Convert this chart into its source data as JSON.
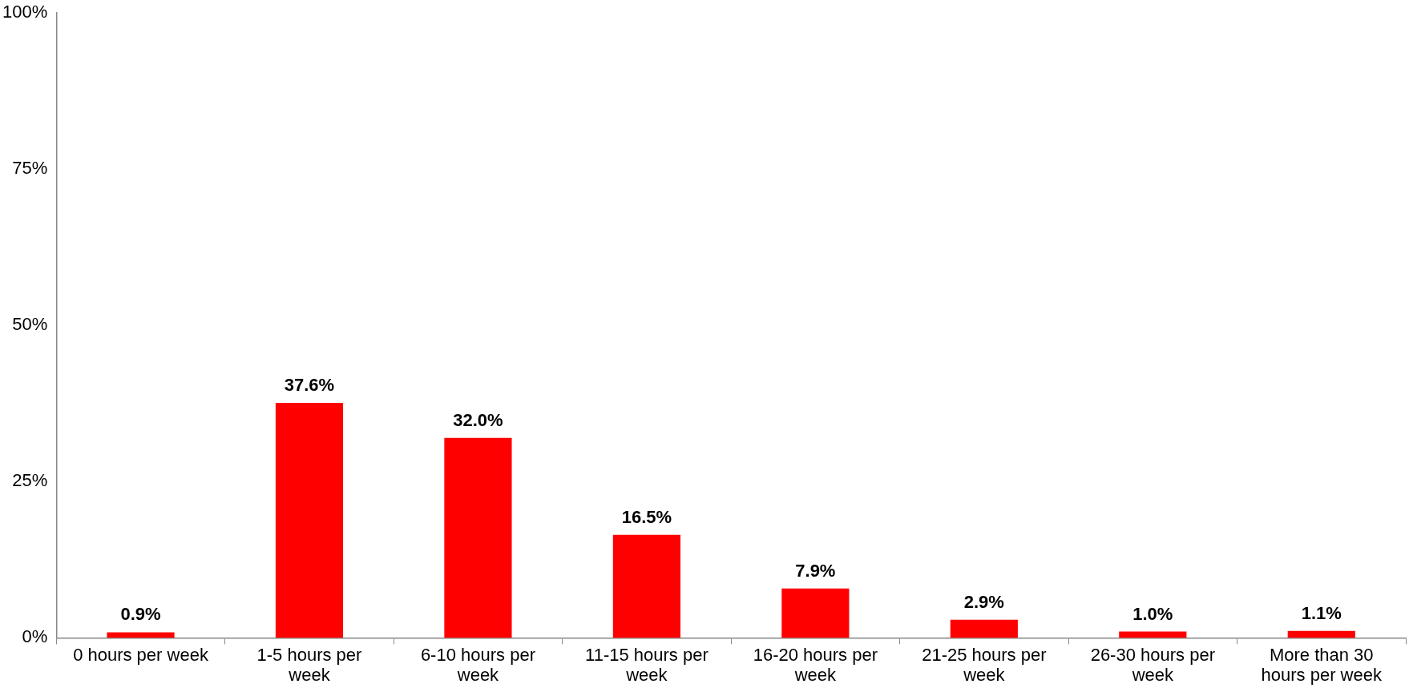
{
  "chart_data": {
    "type": "bar",
    "categories": [
      "0 hours per week",
      "1-5 hours per week",
      "6-10 hours per week",
      "11-15 hours per week",
      "16-20 hours per week",
      "21-25 hours per week",
      "26-30 hours per week",
      "More than 30 hours per week"
    ],
    "values": [
      0.9,
      37.6,
      32.0,
      16.5,
      7.9,
      2.9,
      1.0,
      1.1
    ],
    "value_labels": [
      "0.9%",
      "37.6%",
      "32.0%",
      "16.5%",
      "7.9%",
      "2.9%",
      "1.0%",
      "1.1%"
    ],
    "color": "#ff0000",
    "ylim": [
      0,
      100
    ],
    "yticks": [
      {
        "value": 0,
        "label": "0%"
      },
      {
        "value": 25,
        "label": "25%"
      },
      {
        "value": 50,
        "label": "50%"
      },
      {
        "value": 75,
        "label": "75%"
      },
      {
        "value": 100,
        "label": "100%"
      }
    ],
    "grid": false,
    "legend": false
  }
}
